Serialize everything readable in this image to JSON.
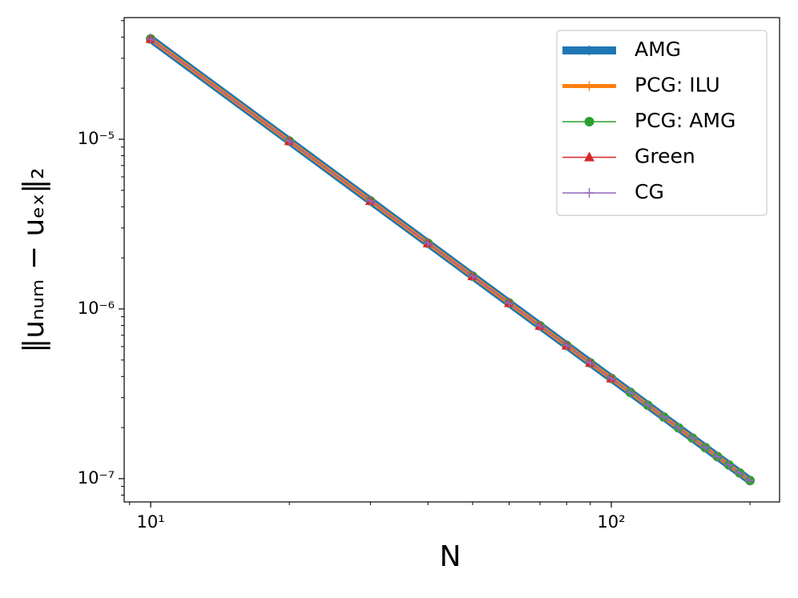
{
  "chart_data": {
    "type": "line",
    "xlabel": "N",
    "ylabel": "‖uₙᵤₘ − uₑₓ‖₂",
    "xlog": true,
    "ylog": true,
    "x": [
      10,
      20,
      30,
      40,
      50,
      60,
      70,
      80,
      90,
      100,
      110,
      120,
      130,
      140,
      150,
      160,
      170,
      180,
      190,
      200
    ],
    "series": [
      {
        "name": "AMG",
        "color": "#1f77b4",
        "linewidth": 10,
        "marker": "plus",
        "values": [
          3.9e-05,
          9.75e-06,
          4.333e-06,
          2.4375e-06,
          1.56e-06,
          1.0833e-06,
          7.959e-07,
          6.094e-07,
          4.815e-07,
          3.9e-07,
          3.223e-07,
          2.708e-07,
          2.308e-07,
          1.99e-07,
          1.733e-07,
          1.523e-07,
          1.349e-07,
          1.204e-07,
          1.08e-07,
          9.75e-08
        ]
      },
      {
        "name": "PCG: ILU",
        "color": "#ff7f0e",
        "linewidth": 5,
        "marker": "plus",
        "values": [
          3.9e-05,
          9.75e-06,
          4.333e-06,
          2.4375e-06,
          1.56e-06,
          1.0833e-06,
          7.959e-07,
          6.094e-07,
          4.815e-07,
          3.9e-07,
          3.223e-07,
          2.708e-07,
          2.308e-07,
          1.99e-07,
          1.733e-07,
          1.523e-07,
          1.349e-07,
          1.204e-07,
          1.08e-07,
          9.75e-08
        ]
      },
      {
        "name": "PCG: AMG",
        "color": "#2ca02c",
        "linewidth": 1.5,
        "marker": "circle",
        "values": [
          3.9e-05,
          9.75e-06,
          4.333e-06,
          2.4375e-06,
          1.56e-06,
          1.0833e-06,
          7.959e-07,
          6.094e-07,
          4.815e-07,
          3.9e-07,
          3.223e-07,
          2.708e-07,
          2.308e-07,
          1.99e-07,
          1.733e-07,
          1.523e-07,
          1.349e-07,
          1.204e-07,
          1.08e-07,
          9.75e-08
        ]
      },
      {
        "name": "Green",
        "color": "#d62728",
        "linewidth": 1.5,
        "marker": "triangle",
        "values": [
          3.9e-05,
          9.75e-06,
          4.333e-06,
          2.4375e-06,
          1.56e-06,
          1.0833e-06,
          7.959e-07,
          6.094e-07,
          4.815e-07,
          3.9e-07,
          null,
          null,
          null,
          null,
          null,
          null,
          null,
          null,
          null,
          null
        ]
      },
      {
        "name": "CG",
        "color": "#9467bd",
        "linewidth": 1.5,
        "marker": "plus",
        "values": [
          3.9e-05,
          9.75e-06,
          4.333e-06,
          2.4375e-06,
          1.56e-06,
          1.0833e-06,
          7.959e-07,
          6.094e-07,
          4.815e-07,
          3.9e-07,
          3.223e-07,
          2.708e-07,
          2.308e-07,
          1.99e-07,
          1.733e-07,
          1.523e-07,
          1.349e-07,
          1.204e-07,
          1.08e-07,
          9.75e-08
        ]
      }
    ],
    "xlim": [
      8.76,
      231.9
    ],
    "ylim": [
      7.29e-08,
      5.21e-05
    ],
    "xticks": [
      {
        "value": 10,
        "label": "10¹"
      },
      {
        "value": 100,
        "label": "10²"
      }
    ],
    "yticks": [
      {
        "value": 1e-07,
        "label": "10⁻⁷"
      },
      {
        "value": 1e-06,
        "label": "10⁻⁶"
      },
      {
        "value": 1e-05,
        "label": "10⁻⁵"
      }
    ],
    "xminor_ticks": [
      9,
      20,
      30,
      40,
      50,
      60,
      70,
      80,
      90,
      200
    ],
    "yminor_ticks": [
      8e-08,
      9e-08,
      2e-07,
      3e-07,
      4e-07,
      5e-07,
      6e-07,
      7e-07,
      8e-07,
      9e-07,
      2e-06,
      3e-06,
      4e-06,
      5e-06,
      6e-06,
      7e-06,
      8e-06,
      9e-06,
      2e-05,
      3e-05,
      4e-05,
      5e-05
    ],
    "legend": "upper right"
  }
}
